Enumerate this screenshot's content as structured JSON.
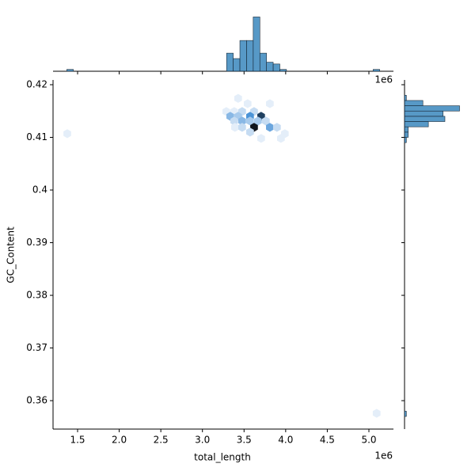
{
  "chart_data": {
    "type": "hexbin",
    "xlabel": "total_length",
    "ylabel": "GC_Content",
    "x_offset": "1e6",
    "xlim": [
      1205000,
      5295000
    ],
    "ylim": [
      0.3546,
      0.4209
    ],
    "xticks": [
      {
        "value": 1500000,
        "label": "1.5"
      },
      {
        "value": 2000000,
        "label": "2.0"
      },
      {
        "value": 2500000,
        "label": "2.5"
      },
      {
        "value": 3000000,
        "label": "3.0"
      },
      {
        "value": 3500000,
        "label": "3.5"
      },
      {
        "value": 4000000,
        "label": "4.0"
      },
      {
        "value": 4500000,
        "label": "4.5"
      },
      {
        "value": 5000000,
        "label": "5.0"
      }
    ],
    "yticks": [
      {
        "value": 0.36,
        "label": "0.36"
      },
      {
        "value": 0.37,
        "label": "0.37"
      },
      {
        "value": 0.38,
        "label": "0.38"
      },
      {
        "value": 0.39,
        "label": "0.39"
      },
      0.4,
      0.41,
      0.42
    ],
    "colormap": [
      "#e4eef9",
      "#3d8bd4",
      "#0f151d"
    ],
    "hexbins": {
      "x": [
        1376000,
        5093000,
        3429000,
        3810000,
        3543000,
        3287000,
        3382000,
        3477000,
        3620000,
        3705000,
        3334000,
        3429000,
        3572000,
        3477000,
        3382000,
        3572000,
        3667000,
        3762000,
        3620000,
        3391000,
        3477000,
        3810000,
        3895000,
        3572000,
        3990000,
        3705000,
        3943000
      ],
      "y": [
        0.4107,
        0.3576,
        0.4174,
        0.4164,
        0.4164,
        0.4149,
        0.4149,
        0.4149,
        0.4149,
        0.414,
        0.414,
        0.414,
        0.414,
        0.4131,
        0.4131,
        0.4131,
        0.4131,
        0.4131,
        0.4119,
        0.4119,
        0.4119,
        0.4119,
        0.4119,
        0.411,
        0.4107,
        0.4098,
        0.4098
      ],
      "counts": [
        1,
        1,
        1,
        1,
        1,
        1,
        1,
        2,
        2,
        10,
        4,
        3,
        6,
        4,
        2,
        3,
        3,
        2,
        12,
        1,
        2,
        5,
        2,
        2,
        1,
        1,
        1
      ]
    },
    "marginal_x": {
      "type": "histogram",
      "color": "#1f77b4",
      "lim": [
        0,
        31.5
      ],
      "bins": [
        1290000,
        1370000,
        1450000,
        1530000,
        1610000,
        1690000,
        1770000,
        1850000,
        1930000,
        2010000,
        2090000,
        2170000,
        2250000,
        2330000,
        2410000,
        2490000,
        2570000,
        2650000,
        2730000,
        2810000,
        2890000,
        2970000,
        3050000,
        3130000,
        3210000,
        3290000,
        3370000,
        3450000,
        3530000,
        3610000,
        3690000,
        3770000,
        3850000,
        3930000,
        4010000,
        4090000,
        4170000,
        4250000,
        4330000,
        4410000,
        4490000,
        4570000,
        4650000,
        4730000,
        4810000,
        4890000,
        4970000,
        5050000,
        5130000
      ],
      "counts": [
        0,
        1,
        0,
        0,
        0,
        0,
        0,
        0,
        0,
        0,
        0,
        0,
        0,
        0,
        0,
        0,
        0,
        0,
        0,
        0,
        0,
        0,
        0,
        0,
        0,
        10,
        7,
        17,
        17,
        30,
        10,
        5,
        4,
        1,
        0,
        0,
        0,
        0,
        0,
        0,
        0,
        0,
        0,
        0,
        0,
        0,
        0,
        1
      ]
    },
    "marginal_y": {
      "type": "histogram",
      "color": "#1f77b4",
      "lim": [
        0,
        31.5
      ],
      "bins": [
        0.357,
        0.358,
        0.359,
        0.36,
        0.361,
        0.362,
        0.363,
        0.364,
        0.365,
        0.366,
        0.367,
        0.368,
        0.369,
        0.37,
        0.371,
        0.372,
        0.373,
        0.374,
        0.375,
        0.376,
        0.377,
        0.378,
        0.379,
        0.38,
        0.381,
        0.382,
        0.383,
        0.384,
        0.385,
        0.386,
        0.387,
        0.388,
        0.389,
        0.39,
        0.391,
        0.392,
        0.393,
        0.394,
        0.395,
        0.396,
        0.397,
        0.398,
        0.399,
        0.4,
        0.401,
        0.402,
        0.403,
        0.404,
        0.405,
        0.406,
        0.407,
        0.408,
        0.409,
        0.41,
        0.411,
        0.412,
        0.413,
        0.414,
        0.415,
        0.416,
        0.417,
        0.418
      ],
      "counts": [
        1,
        0,
        0,
        0,
        0,
        0,
        0,
        0,
        0,
        0,
        0,
        0,
        0,
        0,
        0,
        0,
        0,
        0,
        0,
        0,
        0,
        0,
        0,
        0,
        0,
        0,
        0,
        0,
        0,
        0,
        0,
        0,
        0,
        0,
        0,
        0,
        0,
        0,
        0,
        0,
        0,
        0,
        0,
        0,
        0,
        0,
        0,
        0,
        0,
        0,
        0,
        0,
        1,
        2,
        2,
        13,
        22,
        21,
        30,
        10,
        1
      ]
    }
  }
}
